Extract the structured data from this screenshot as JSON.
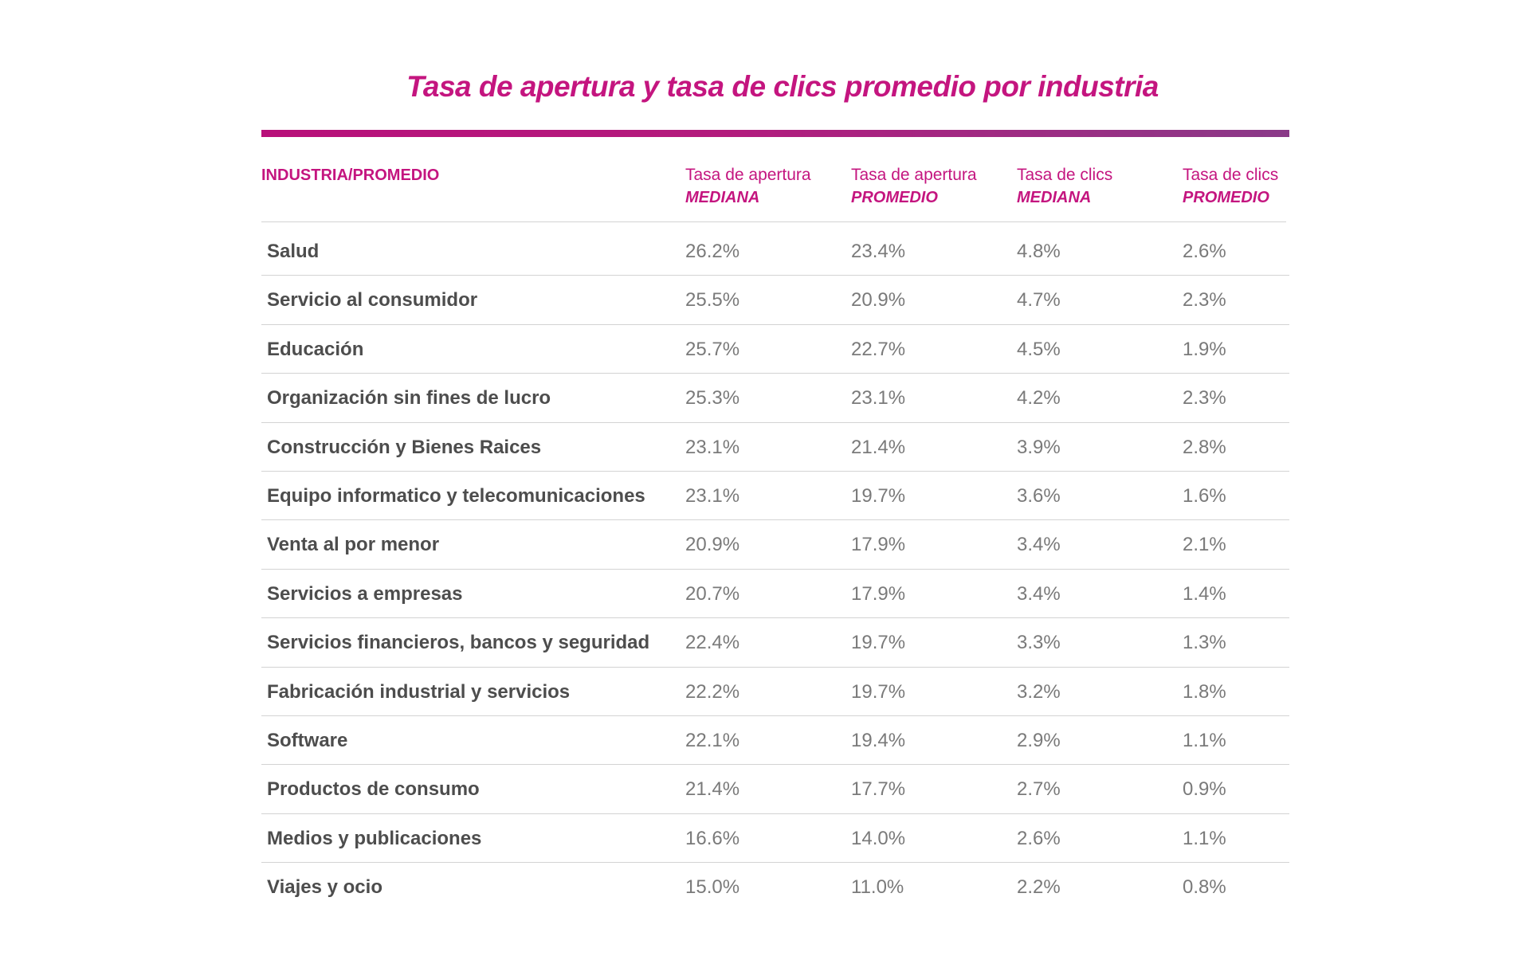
{
  "chart_data": {
    "type": "table",
    "title": "Tasa de apertura y tasa de clics promedio por industria",
    "colors": {
      "accent": "#c4157f",
      "rule_start": "#b8107a",
      "rule_end": "#8a3a88",
      "label_text": "#4d4d4d",
      "value_text": "#7a7a7a",
      "divider": "#d3d3d3"
    },
    "header": {
      "industry": "INDUSTRIA/PROMEDIO",
      "columns": [
        {
          "line1": "Tasa de apertura",
          "line2": "MEDIANA"
        },
        {
          "line1": "Tasa de apertura",
          "line2": "PROMEDIO"
        },
        {
          "line1": "Tasa de clics",
          "line2": "MEDIANA"
        },
        {
          "line1": "Tasa de clics",
          "line2": "PROMEDIO"
        }
      ]
    },
    "rows": [
      {
        "industry": "Salud",
        "values": [
          "26.2%",
          "23.4%",
          "4.8%",
          "2.6%"
        ]
      },
      {
        "industry": "Servicio al consumidor",
        "values": [
          "25.5%",
          "20.9%",
          "4.7%",
          "2.3%"
        ]
      },
      {
        "industry": "Educación",
        "values": [
          "25.7%",
          "22.7%",
          "4.5%",
          "1.9%"
        ]
      },
      {
        "industry": "Organización sin fines de lucro",
        "values": [
          "25.3%",
          "23.1%",
          "4.2%",
          "2.3%"
        ]
      },
      {
        "industry": "Construcción y Bienes Raices",
        "values": [
          "23.1%",
          "21.4%",
          "3.9%",
          "2.8%"
        ]
      },
      {
        "industry": "Equipo informatico y telecomunicaciones",
        "values": [
          "23.1%",
          "19.7%",
          "3.6%",
          "1.6%"
        ]
      },
      {
        "industry": "Venta al por menor",
        "values": [
          "20.9%",
          "17.9%",
          "3.4%",
          "2.1%"
        ]
      },
      {
        "industry": "Servicios a empresas",
        "values": [
          "20.7%",
          "17.9%",
          "3.4%",
          "1.4%"
        ]
      },
      {
        "industry": "Servicios financieros, bancos y seguridad",
        "values": [
          "22.4%",
          "19.7%",
          "3.3%",
          "1.3%"
        ]
      },
      {
        "industry": "Fabricación industrial y servicios",
        "values": [
          "22.2%",
          "19.7%",
          "3.2%",
          "1.8%"
        ]
      },
      {
        "industry": "Software",
        "values": [
          "22.1%",
          "19.4%",
          "2.9%",
          "1.1%"
        ]
      },
      {
        "industry": "Productos de consumo",
        "values": [
          "21.4%",
          "17.7%",
          "2.7%",
          "0.9%"
        ]
      },
      {
        "industry": "Medios y publicaciones",
        "values": [
          "16.6%",
          "14.0%",
          "2.6%",
          "1.1%"
        ]
      },
      {
        "industry": "Viajes y ocio",
        "values": [
          "15.0%",
          "11.0%",
          "2.2%",
          "0.8%"
        ]
      }
    ]
  }
}
